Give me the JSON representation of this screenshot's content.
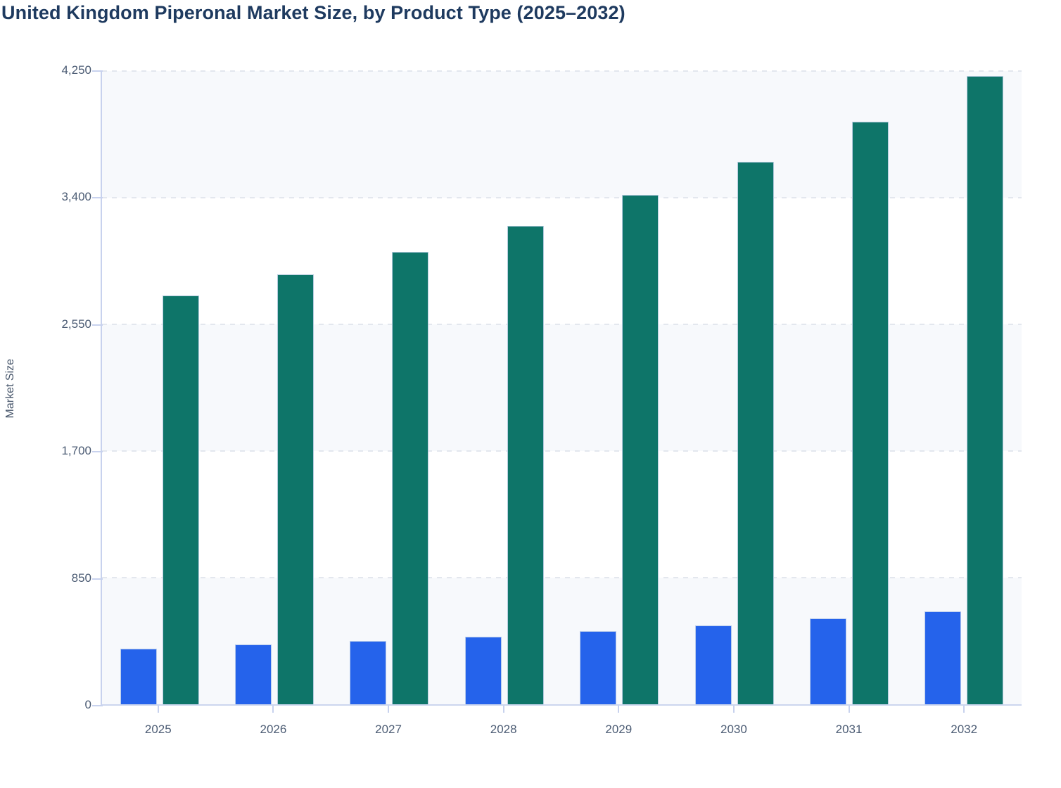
{
  "title": "United Kingdom Piperonal Market Size, by Product Type (2025–2032)",
  "chart_data": {
    "type": "bar",
    "title": "United Kingdom Piperonal Market Size, by Product Type (2025–2032)",
    "xlabel": "",
    "ylabel": "Market Size",
    "categories": [
      "2025",
      "2026",
      "2027",
      "2028",
      "2029",
      "2030",
      "2031",
      "2032"
    ],
    "series": [
      {
        "name": "blue-series",
        "color": "#2563eb",
        "values": [
          375,
          400,
          425,
          455,
          490,
          530,
          575,
          625
        ]
      },
      {
        "name": "teal-series",
        "color": "#0e7569",
        "values": [
          2745,
          2885,
          3035,
          3210,
          3420,
          3640,
          3910,
          4215
        ]
      }
    ],
    "ylim": [
      0,
      4250
    ],
    "yticks": [
      0,
      850,
      1700,
      2550,
      3400,
      4250
    ],
    "ytick_labels": [
      "0",
      "850",
      "1,700",
      "2,550",
      "3,400",
      "4,250"
    ],
    "grid": "horizontal-dashed",
    "legend": "none",
    "plot_background": "alternating horizontal bands #f7f9fc / #ffffff"
  },
  "colors": {
    "title_text": "#1e3a5f",
    "axis_text": "#4c5c74",
    "axis_line": "#c8d2ee",
    "gridline": "#e3e7ee",
    "band": "#f7f9fc",
    "bar_blue": "#2563eb",
    "bar_teal": "#0e7569"
  }
}
